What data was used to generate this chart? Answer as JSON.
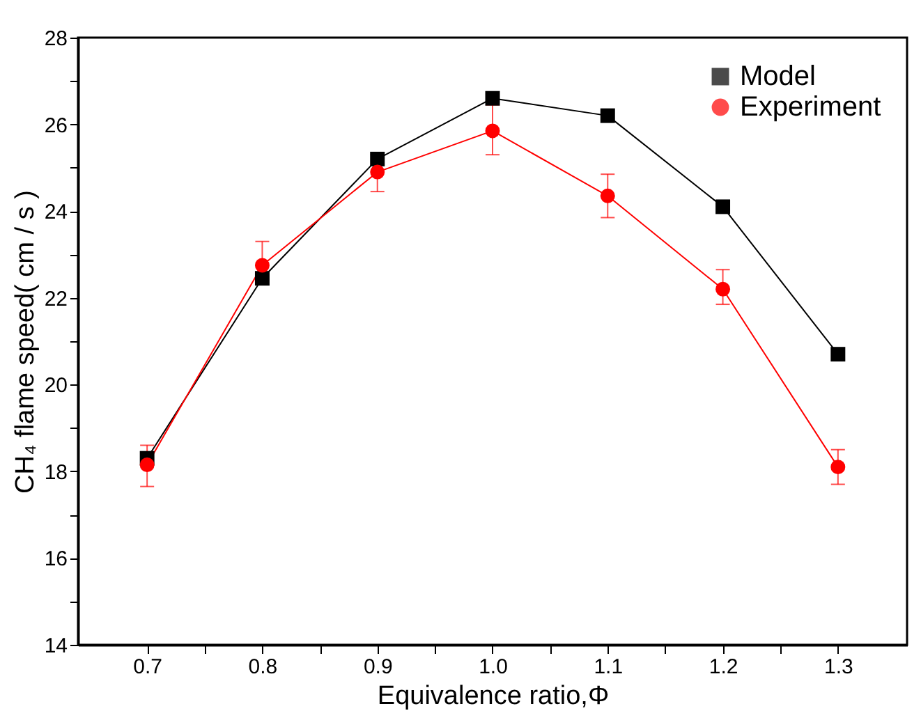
{
  "chart_data": {
    "type": "line",
    "xlabel": "Equivalence ratio,Φ",
    "ylabel": "CH₄ flame speed( cm / s )",
    "x": [
      0.7,
      0.8,
      0.9,
      1.0,
      1.1,
      1.2,
      1.3
    ],
    "xlim": [
      0.64,
      1.36
    ],
    "xticks": [
      0.7,
      {
        "value": 0.75,
        "label": null
      },
      0.8,
      {
        "value": 0.85,
        "label": null
      },
      0.9,
      {
        "value": 0.95,
        "label": null
      },
      {
        "value": 1.0,
        "label": "1.0"
      },
      {
        "value": 1.05,
        "label": null
      },
      1.1,
      {
        "value": 1.15,
        "label": null
      },
      1.2,
      {
        "value": 1.25,
        "label": null
      },
      1.3
    ],
    "ylim": [
      14,
      28
    ],
    "yticks": [
      14,
      {
        "value": 15,
        "label": null
      },
      16,
      {
        "value": 17,
        "label": null
      },
      18,
      {
        "value": 19,
        "label": null
      },
      20,
      {
        "value": 21,
        "label": null
      },
      22,
      {
        "value": 23,
        "label": null
      },
      24,
      {
        "value": 25,
        "label": null
      },
      26,
      {
        "value": 27,
        "label": null
      },
      28
    ],
    "series": [
      {
        "name": "Model",
        "color": "#000000",
        "marker": "square",
        "values": [
          18.3,
          22.45,
          25.2,
          26.6,
          26.2,
          24.1,
          20.7
        ]
      },
      {
        "name": "Experiment",
        "color": "#ff0000",
        "marker": "circle",
        "values": [
          18.15,
          22.75,
          24.9,
          25.85,
          24.35,
          22.2,
          18.1
        ],
        "errors": [
          [
            17.65,
            18.6
          ],
          [
            22.3,
            23.3
          ],
          [
            24.45,
            25.3
          ],
          [
            25.3,
            26.45
          ],
          [
            23.85,
            24.85
          ],
          [
            21.85,
            22.65
          ],
          [
            17.7,
            18.5
          ]
        ]
      }
    ],
    "legend": "top right",
    "grid": false,
    "line_style": "solid"
  }
}
